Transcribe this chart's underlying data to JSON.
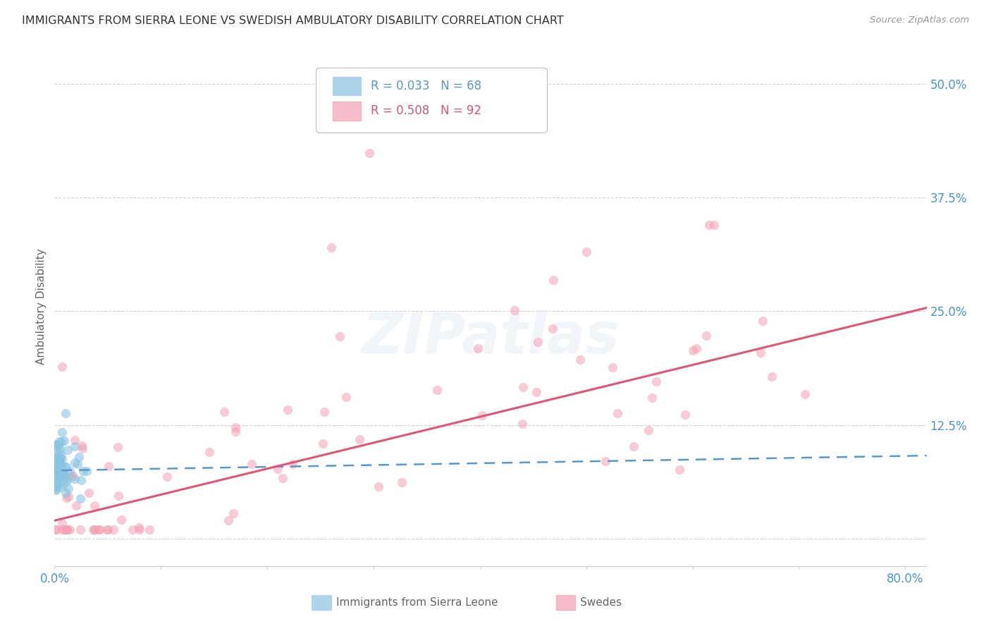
{
  "title": "IMMIGRANTS FROM SIERRA LEONE VS SWEDISH AMBULATORY DISABILITY CORRELATION CHART",
  "source": "Source: ZipAtlas.com",
  "ylabel": "Ambulatory Disability",
  "xlim": [
    0.0,
    0.82
  ],
  "ylim": [
    -0.03,
    0.54
  ],
  "ytick_vals": [
    0.0,
    0.125,
    0.25,
    0.375,
    0.5
  ],
  "ytick_labels": [
    "",
    "12.5%",
    "25.0%",
    "37.5%",
    "50.0%"
  ],
  "xtick_vals": [
    0.0,
    0.1,
    0.2,
    0.3,
    0.4,
    0.5,
    0.6,
    0.7,
    0.8
  ],
  "xtick_labels": [
    "0.0%",
    "",
    "",
    "",
    "",
    "",
    "",
    "",
    "80.0%"
  ],
  "grid_color": "#cccccc",
  "background_color": "#ffffff",
  "legend_R1": "R = 0.033",
  "legend_N1": "N = 68",
  "legend_R2": "R = 0.508",
  "legend_N2": "N = 92",
  "blue_color": "#89c4e1",
  "pink_color": "#f4a0b5",
  "blue_line_color": "#5599cc",
  "pink_line_color": "#e05575",
  "title_color": "#333333",
  "axis_label_color": "#666666",
  "tick_color": "#4499cc",
  "watermark": "ZIPatlas"
}
